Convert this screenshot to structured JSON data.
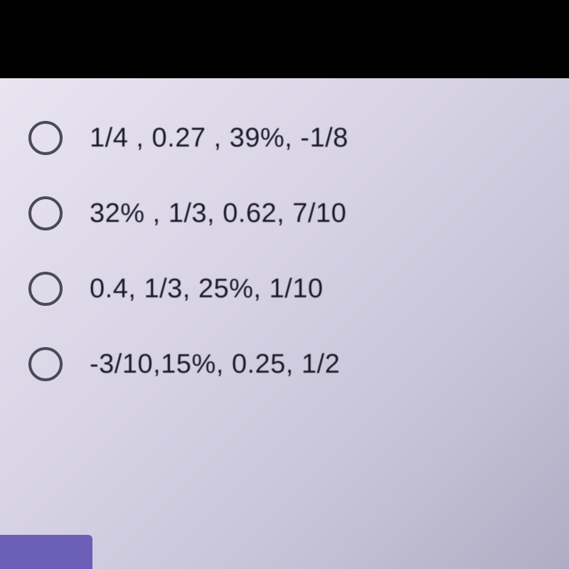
{
  "quiz": {
    "options": [
      {
        "label": "1/4 , 0.27 , 39%, -1/8",
        "selected": false
      },
      {
        "label": "32% , 1/3, 0.62, 7/10",
        "selected": false
      },
      {
        "label": "0.4, 1/3, 25%, 1/10",
        "selected": false
      },
      {
        "label": "-3/10,15%, 0.25, 1/2",
        "selected": false
      }
    ]
  },
  "styling": {
    "background_black": "#000000",
    "screen_gradient_start": "#e8e4f0",
    "screen_gradient_end": "#b0acc4",
    "radio_border_color": "#4a4a5a",
    "text_color": "#1a1a2a",
    "accent_purple": "#6b5fb8",
    "label_fontsize": 38,
    "radio_diameter": 48,
    "radio_border_width": 4
  }
}
